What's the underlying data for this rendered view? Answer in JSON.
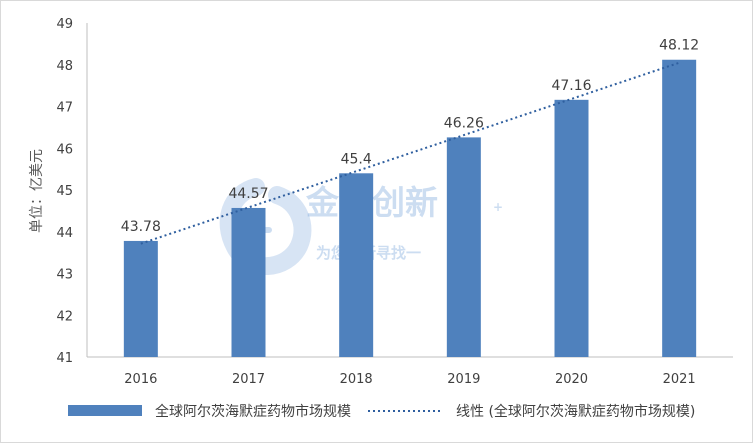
{
  "chart_data": {
    "type": "bar",
    "categories": [
      "2016",
      "2017",
      "2018",
      "2019",
      "2020",
      "2021"
    ],
    "series": [
      {
        "name": "全球阿尔茨海默症药物市场规模",
        "values": [
          43.78,
          44.57,
          45.4,
          46.26,
          47.16,
          48.12
        ],
        "color": "#4f81bd"
      }
    ],
    "data_labels": [
      "43.78",
      "44.57",
      "45.4",
      "46.26",
      "47.16",
      "48.12"
    ],
    "trendline": {
      "name": "线性 (全球阿尔茨海默症药物市场规模)",
      "type": "linear",
      "color": "#2f5f9f",
      "style": "dotted"
    },
    "ylabel": "单位：亿美元",
    "xlabel": "",
    "title": "",
    "ylim": [
      41,
      49
    ],
    "yticks": [
      41,
      42,
      43,
      44,
      45,
      46,
      47,
      48,
      49
    ],
    "grid": false,
    "legend_position": "bottom"
  },
  "watermark": {
    "text": "金智创新",
    "subtext": "为您创新寻找一",
    "color": "#6f9fd8"
  }
}
